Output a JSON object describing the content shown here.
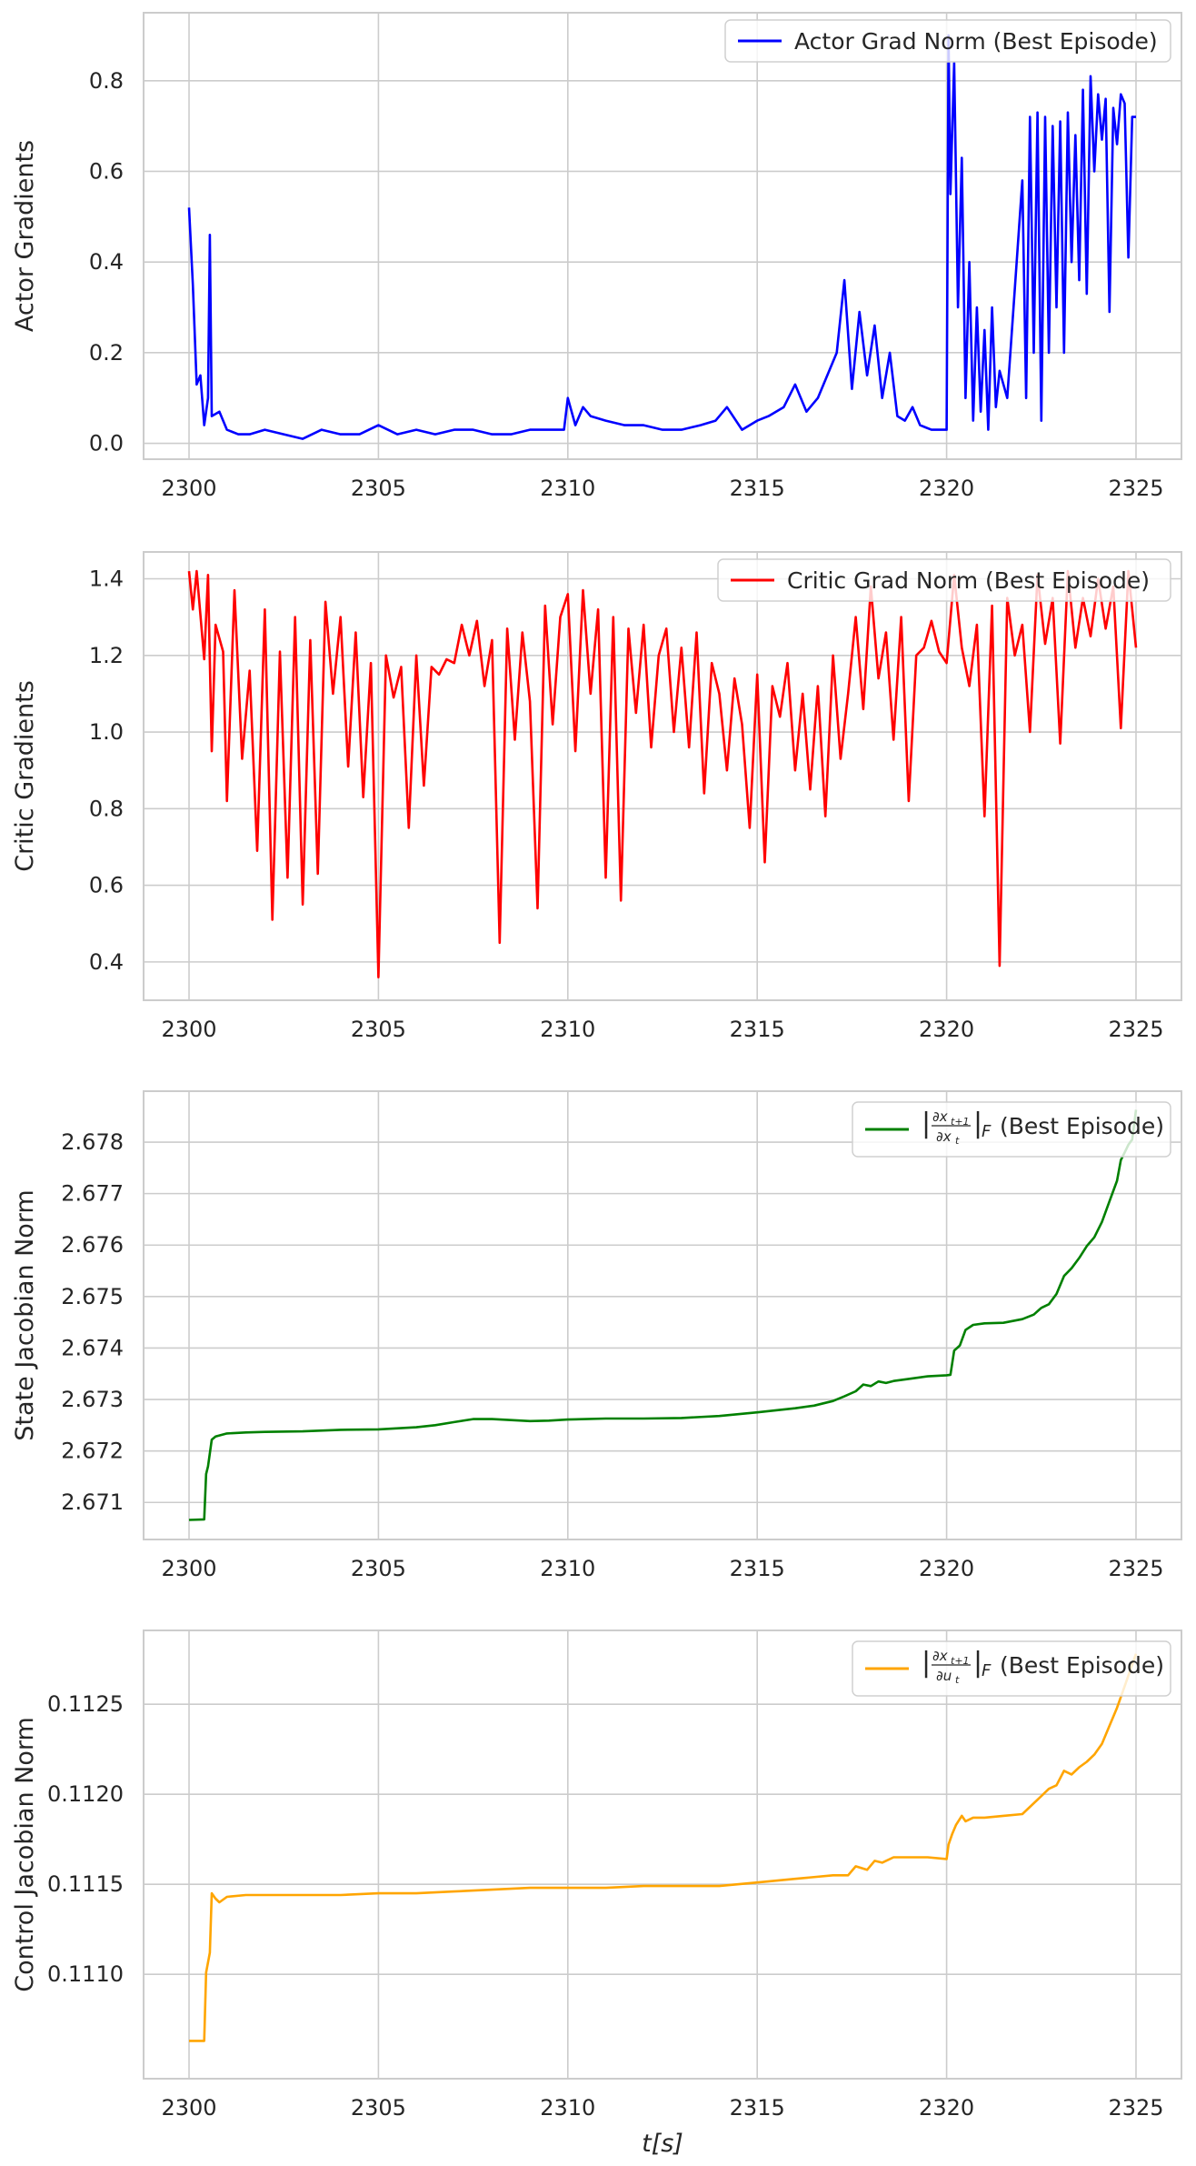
{
  "chart_data": [
    {
      "type": "line",
      "ylabel": "Actor Gradients",
      "xlabel": "",
      "xlim": [
        2298.8,
        2326.2
      ],
      "ylim": [
        -0.035,
        0.95
      ],
      "xticks": [
        "2300",
        "2305",
        "2310",
        "2315",
        "2320",
        "2325"
      ],
      "yticks": [
        "0.0",
        "0.2",
        "0.4",
        "0.6",
        "0.8"
      ],
      "grid": true,
      "legend_position": "top-right",
      "series": [
        {
          "name": "Actor Grad Norm (Best Episode)",
          "color": "#0000ff",
          "x": [
            2300.0,
            2300.1,
            2300.2,
            2300.3,
            2300.4,
            2300.5,
            2300.55,
            2300.6,
            2300.8,
            2301.0,
            2301.3,
            2301.6,
            2302.0,
            2302.5,
            2303.0,
            2303.5,
            2304.0,
            2304.5,
            2305.0,
            2305.5,
            2306.0,
            2306.5,
            2307.0,
            2307.5,
            2308.0,
            2308.5,
            2309.0,
            2309.5,
            2309.9,
            2310.0,
            2310.2,
            2310.4,
            2310.6,
            2311.0,
            2311.5,
            2312.0,
            2312.5,
            2313.0,
            2313.5,
            2313.9,
            2314.2,
            2314.6,
            2315.0,
            2315.3,
            2315.7,
            2316.0,
            2316.3,
            2316.6,
            2316.9,
            2317.1,
            2317.3,
            2317.5,
            2317.7,
            2317.9,
            2318.1,
            2318.3,
            2318.5,
            2318.7,
            2318.9,
            2319.1,
            2319.3,
            2319.6,
            2319.9,
            2320.0,
            2320.05,
            2320.1,
            2320.2,
            2320.3,
            2320.4,
            2320.5,
            2320.6,
            2320.7,
            2320.8,
            2320.9,
            2321.0,
            2321.1,
            2321.2,
            2321.3,
            2321.4,
            2321.6,
            2321.8,
            2322.0,
            2322.1,
            2322.2,
            2322.3,
            2322.4,
            2322.5,
            2322.6,
            2322.7,
            2322.8,
            2322.9,
            2323.0,
            2323.1,
            2323.2,
            2323.3,
            2323.4,
            2323.5,
            2323.6,
            2323.7,
            2323.8,
            2323.9,
            2324.0,
            2324.1,
            2324.2,
            2324.3,
            2324.4,
            2324.5,
            2324.6,
            2324.7,
            2324.8,
            2324.9,
            2325.0
          ],
          "y": [
            0.52,
            0.35,
            0.13,
            0.15,
            0.04,
            0.1,
            0.46,
            0.06,
            0.07,
            0.03,
            0.02,
            0.02,
            0.03,
            0.02,
            0.01,
            0.03,
            0.02,
            0.02,
            0.04,
            0.02,
            0.03,
            0.02,
            0.03,
            0.03,
            0.02,
            0.02,
            0.03,
            0.03,
            0.03,
            0.1,
            0.04,
            0.08,
            0.06,
            0.05,
            0.04,
            0.04,
            0.03,
            0.03,
            0.04,
            0.05,
            0.08,
            0.03,
            0.05,
            0.06,
            0.08,
            0.13,
            0.07,
            0.1,
            0.16,
            0.2,
            0.36,
            0.12,
            0.29,
            0.15,
            0.26,
            0.1,
            0.2,
            0.06,
            0.05,
            0.08,
            0.04,
            0.03,
            0.03,
            0.03,
            0.9,
            0.55,
            0.84,
            0.3,
            0.63,
            0.1,
            0.4,
            0.05,
            0.3,
            0.07,
            0.25,
            0.03,
            0.3,
            0.08,
            0.16,
            0.1,
            0.34,
            0.58,
            0.1,
            0.72,
            0.2,
            0.73,
            0.05,
            0.72,
            0.2,
            0.7,
            0.3,
            0.71,
            0.2,
            0.73,
            0.4,
            0.68,
            0.36,
            0.78,
            0.33,
            0.81,
            0.6,
            0.77,
            0.67,
            0.76,
            0.29,
            0.74,
            0.66,
            0.77,
            0.75,
            0.41,
            0.72,
            0.72
          ]
        }
      ]
    },
    {
      "type": "line",
      "ylabel": "Critic Gradients",
      "xlabel": "",
      "xlim": [
        2298.8,
        2326.2
      ],
      "ylim": [
        0.3,
        1.47
      ],
      "xticks": [
        "2300",
        "2305",
        "2310",
        "2315",
        "2320",
        "2325"
      ],
      "yticks": [
        "0.4",
        "0.6",
        "0.8",
        "1.0",
        "1.2",
        "1.4"
      ],
      "grid": true,
      "legend_position": "top-right",
      "series": [
        {
          "name": "Critic Grad Norm (Best Episode)",
          "color": "#ff0000",
          "x": [
            2300.0,
            2300.1,
            2300.2,
            2300.4,
            2300.5,
            2300.6,
            2300.7,
            2300.9,
            2301.0,
            2301.2,
            2301.4,
            2301.6,
            2301.8,
            2302.0,
            2302.2,
            2302.4,
            2302.6,
            2302.8,
            2303.0,
            2303.2,
            2303.4,
            2303.6,
            2303.8,
            2304.0,
            2304.2,
            2304.4,
            2304.6,
            2304.8,
            2305.0,
            2305.2,
            2305.4,
            2305.6,
            2305.8,
            2306.0,
            2306.2,
            2306.4,
            2306.6,
            2306.8,
            2307.0,
            2307.2,
            2307.4,
            2307.6,
            2307.8,
            2308.0,
            2308.2,
            2308.4,
            2308.6,
            2308.8,
            2309.0,
            2309.2,
            2309.4,
            2309.6,
            2309.8,
            2310.0,
            2310.2,
            2310.4,
            2310.6,
            2310.8,
            2311.0,
            2311.2,
            2311.4,
            2311.6,
            2311.8,
            2312.0,
            2312.2,
            2312.4,
            2312.6,
            2312.8,
            2313.0,
            2313.2,
            2313.4,
            2313.6,
            2313.8,
            2314.0,
            2314.2,
            2314.4,
            2314.6,
            2314.8,
            2315.0,
            2315.2,
            2315.4,
            2315.6,
            2315.8,
            2316.0,
            2316.2,
            2316.4,
            2316.6,
            2316.8,
            2317.0,
            2317.2,
            2317.4,
            2317.6,
            2317.8,
            2318.0,
            2318.2,
            2318.4,
            2318.6,
            2318.8,
            2319.0,
            2319.2,
            2319.4,
            2319.6,
            2319.8,
            2320.0,
            2320.2,
            2320.4,
            2320.6,
            2320.8,
            2321.0,
            2321.2,
            2321.4,
            2321.6,
            2321.8,
            2322.0,
            2322.2,
            2322.4,
            2322.6,
            2322.8,
            2323.0,
            2323.2,
            2323.4,
            2323.6,
            2323.8,
            2324.0,
            2324.2,
            2324.4,
            2324.6,
            2324.8,
            2325.0
          ],
          "y": [
            1.42,
            1.32,
            1.42,
            1.19,
            1.41,
            0.95,
            1.28,
            1.21,
            0.82,
            1.37,
            0.93,
            1.16,
            0.69,
            1.32,
            0.51,
            1.21,
            0.62,
            1.3,
            0.55,
            1.24,
            0.63,
            1.34,
            1.1,
            1.3,
            0.91,
            1.26,
            0.83,
            1.18,
            0.36,
            1.2,
            1.09,
            1.17,
            0.75,
            1.2,
            0.86,
            1.17,
            1.15,
            1.19,
            1.18,
            1.28,
            1.2,
            1.29,
            1.12,
            1.24,
            0.45,
            1.27,
            0.98,
            1.26,
            1.08,
            0.54,
            1.33,
            1.02,
            1.3,
            1.36,
            0.95,
            1.37,
            1.1,
            1.32,
            0.62,
            1.3,
            0.56,
            1.27,
            1.05,
            1.28,
            0.96,
            1.2,
            1.27,
            1.0,
            1.22,
            0.96,
            1.26,
            0.84,
            1.18,
            1.1,
            0.9,
            1.14,
            1.02,
            0.75,
            1.15,
            0.66,
            1.12,
            1.04,
            1.18,
            0.9,
            1.1,
            0.85,
            1.12,
            0.78,
            1.2,
            0.93,
            1.1,
            1.3,
            1.06,
            1.38,
            1.14,
            1.26,
            0.98,
            1.3,
            0.82,
            1.2,
            1.22,
            1.29,
            1.21,
            1.18,
            1.41,
            1.22,
            1.12,
            1.28,
            0.78,
            1.33,
            0.39,
            1.35,
            1.2,
            1.28,
            1.0,
            1.41,
            1.23,
            1.35,
            0.97,
            1.42,
            1.22,
            1.35,
            1.25,
            1.4,
            1.27,
            1.38,
            1.01,
            1.42,
            1.22
          ]
        }
      ]
    },
    {
      "type": "line",
      "ylabel": "State Jacobian Norm",
      "xlabel": "",
      "xlim": [
        2298.8,
        2326.2
      ],
      "ylim": [
        2.67028,
        2.67899
      ],
      "xticks": [
        "2300",
        "2305",
        "2310",
        "2315",
        "2320",
        "2325"
      ],
      "yticks": [
        "2.671",
        "2.672",
        "2.673",
        "2.674",
        "2.675",
        "2.676",
        "2.677",
        "2.678"
      ],
      "grid": true,
      "legend_position": "top-right",
      "series": [
        {
          "name": "State Jacobian Norm",
          "legend_label": "|∂x_{t+1}/∂x_t|_F (Best Episode)",
          "color": "#008000",
          "x": [
            2300.0,
            2300.4,
            2300.45,
            2300.5,
            2300.6,
            2300.7,
            2301.0,
            2301.5,
            2302.0,
            2303.0,
            2304.0,
            2305.0,
            2306.0,
            2306.5,
            2307.0,
            2307.5,
            2308.0,
            2308.5,
            2309.0,
            2309.5,
            2310.0,
            2311.0,
            2312.0,
            2313.0,
            2314.0,
            2315.0,
            2315.5,
            2316.0,
            2316.5,
            2317.0,
            2317.3,
            2317.6,
            2317.8,
            2318.0,
            2318.2,
            2318.4,
            2318.6,
            2319.0,
            2319.5,
            2320.0,
            2320.1,
            2320.2,
            2320.35,
            2320.5,
            2320.7,
            2321.0,
            2321.5,
            2322.0,
            2322.3,
            2322.5,
            2322.7,
            2322.9,
            2323.1,
            2323.3,
            2323.5,
            2323.7,
            2323.9,
            2324.1,
            2324.3,
            2324.5,
            2324.6,
            2324.7,
            2324.8,
            2324.9,
            2325.0
          ],
          "y": [
            2.67066,
            2.67067,
            2.67155,
            2.6717,
            2.67222,
            2.67228,
            2.67234,
            2.67236,
            2.67237,
            2.67238,
            2.67241,
            2.67242,
            2.67246,
            2.6725,
            2.67256,
            2.67262,
            2.67262,
            2.6726,
            2.67258,
            2.67259,
            2.67261,
            2.67263,
            2.67263,
            2.67264,
            2.67268,
            2.67275,
            2.67279,
            2.67283,
            2.67288,
            2.67297,
            2.67306,
            2.67316,
            2.67329,
            2.67326,
            2.67335,
            2.67332,
            2.67336,
            2.6734,
            2.67345,
            2.67347,
            2.67348,
            2.67395,
            2.67405,
            2.67435,
            2.67445,
            2.67448,
            2.67449,
            2.67456,
            2.67465,
            2.67478,
            2.67485,
            2.67505,
            2.6754,
            2.67555,
            2.67575,
            2.67598,
            2.67615,
            2.67645,
            2.67685,
            2.67725,
            2.67765,
            2.6778,
            2.67795,
            2.67805,
            2.67863
          ]
        }
      ]
    },
    {
      "type": "line",
      "ylabel": "Control Jacobian Norm",
      "xlabel": "t[s]",
      "xlim": [
        2298.8,
        2326.2
      ],
      "ylim": [
        0.11042,
        0.11291
      ],
      "xticks": [
        "2300",
        "2305",
        "2310",
        "2315",
        "2320",
        "2325"
      ],
      "yticks": [
        "0.1110",
        "0.1115",
        "0.1120",
        "0.1125"
      ],
      "grid": true,
      "legend_position": "top-right",
      "series": [
        {
          "name": "Control Jacobian Norm",
          "legend_label": "|∂x_{t+1}/∂u_t|_F (Best Episode)",
          "color": "#ffa500",
          "x": [
            2300.0,
            2300.4,
            2300.45,
            2300.55,
            2300.6,
            2300.7,
            2300.8,
            2301.0,
            2301.5,
            2302.0,
            2303.0,
            2304.0,
            2305.0,
            2306.0,
            2307.0,
            2308.0,
            2309.0,
            2310.0,
            2311.0,
            2312.0,
            2313.0,
            2314.0,
            2315.0,
            2316.0,
            2317.0,
            2317.4,
            2317.6,
            2317.9,
            2318.1,
            2318.3,
            2318.6,
            2319.0,
            2319.5,
            2320.0,
            2320.05,
            2320.15,
            2320.25,
            2320.4,
            2320.5,
            2320.7,
            2321.0,
            2321.5,
            2322.0,
            2322.3,
            2322.5,
            2322.7,
            2322.9,
            2323.1,
            2323.3,
            2323.5,
            2323.7,
            2323.9,
            2324.1,
            2324.3,
            2324.5,
            2324.7,
            2324.9,
            2325.0
          ],
          "y": [
            0.11063,
            0.11063,
            0.11101,
            0.11112,
            0.11145,
            0.11142,
            0.1114,
            0.11143,
            0.11144,
            0.11144,
            0.11144,
            0.11144,
            0.11145,
            0.11145,
            0.11146,
            0.11147,
            0.11148,
            0.11148,
            0.11148,
            0.11149,
            0.11149,
            0.11149,
            0.11151,
            0.11153,
            0.11155,
            0.11155,
            0.1116,
            0.11158,
            0.11163,
            0.11162,
            0.11165,
            0.11165,
            0.11165,
            0.11164,
            0.11172,
            0.11178,
            0.11183,
            0.11188,
            0.11185,
            0.11187,
            0.11187,
            0.11188,
            0.11189,
            0.11195,
            0.11199,
            0.11203,
            0.11205,
            0.11213,
            0.11211,
            0.11215,
            0.11218,
            0.11222,
            0.11228,
            0.11238,
            0.11248,
            0.1126,
            0.11272,
            0.11278
          ]
        }
      ]
    }
  ]
}
